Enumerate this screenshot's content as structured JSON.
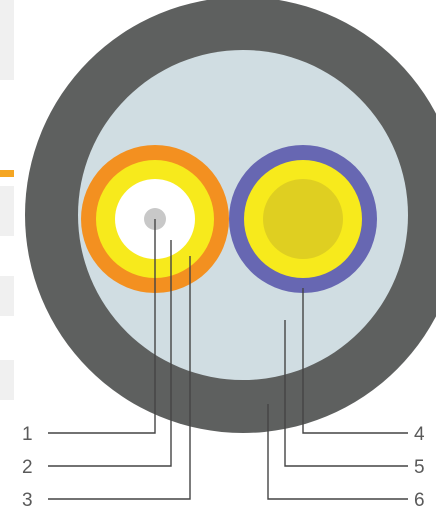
{
  "colors": {
    "background": "#ffffff",
    "left_background_strips": "#f0f0f0",
    "left_accent_tab": "#f5a623",
    "outer_jacket": "#5e605f",
    "inner_filler": "#d0dde2",
    "fiber1_outer_ring": "#f39020",
    "fiber1_middle_ring": "#f7ea1c",
    "fiber1_inner_field": "#ffffff",
    "fiber1_core": "#c8c8c8",
    "fiber2_outer_ring": "#6767b2",
    "fiber2_middle_ring": "#f7ea1c",
    "fiber2_core": "#dfcf21",
    "leader_line": "#444444",
    "label_text": "#5a5a5a"
  },
  "callouts": {
    "left": [
      {
        "label": "1"
      },
      {
        "label": "2"
      },
      {
        "label": "3"
      }
    ],
    "right": [
      {
        "label": "4"
      },
      {
        "label": "5"
      },
      {
        "label": "6"
      }
    ]
  }
}
